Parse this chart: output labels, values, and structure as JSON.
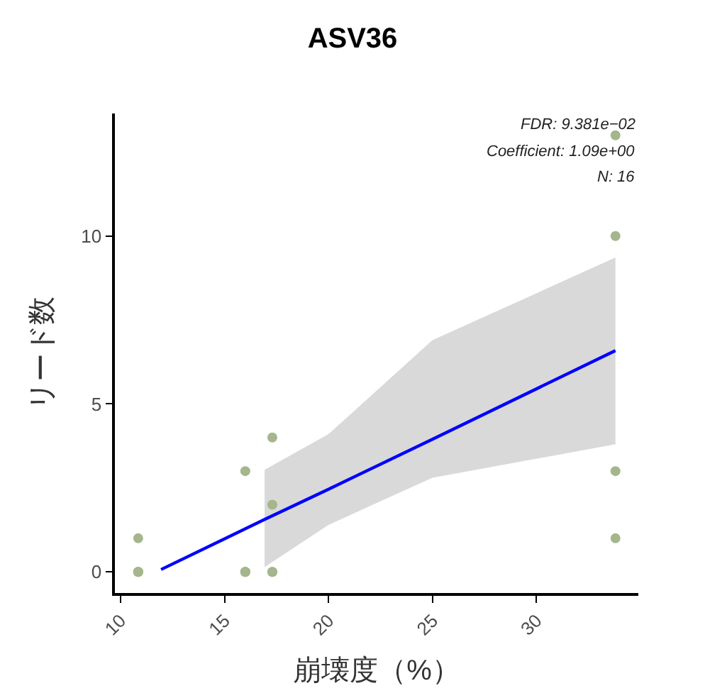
{
  "chart_data": {
    "type": "scatter",
    "title": "ASV36",
    "xlabel": "崩壊度（%）",
    "ylabel": "リード数",
    "annotations": [
      "FDR: 9.381e−02",
      "Coefficient: 1.09e+00",
      "N: 16"
    ],
    "series": [
      {
        "color": "#a5b58c",
        "marker": "circle",
        "x": [
          10.85,
          10.85,
          10.85,
          10.85,
          16,
          16,
          16,
          16,
          17.3,
          17.3,
          17.3,
          17.3,
          33.8,
          33.8,
          33.8,
          33.8
        ],
        "values": [
          1,
          0,
          0,
          0,
          3,
          0,
          0,
          0,
          4,
          2,
          0,
          0,
          13,
          10,
          3,
          1
        ]
      },
      {
        "type": "line",
        "color": "#0000ff",
        "x": [
          11.95,
          16.93,
          20,
          25,
          33.8
        ],
        "values": [
          0.07,
          1.56,
          2.46,
          3.95,
          6.59
        ],
        "lower": [
          null,
          0.14,
          1.4,
          2.8,
          3.8
        ],
        "upper": [
          null,
          3.04,
          4.1,
          6.9,
          9.36
        ]
      }
    ],
    "xlim": [
      9.73,
      34.9
    ],
    "xticks": [
      10,
      15,
      20,
      25,
      30
    ],
    "ylim": [
      -0.63,
      13.65
    ],
    "yticks": [
      0,
      5,
      10
    ]
  }
}
